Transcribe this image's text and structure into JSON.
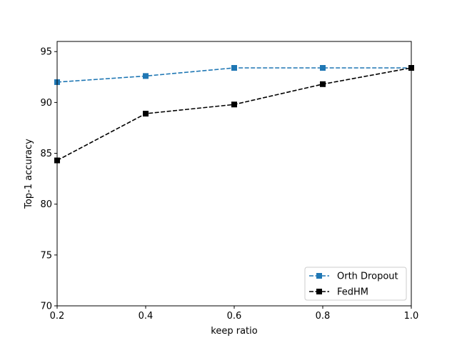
{
  "chart_data": {
    "type": "line",
    "title": "",
    "xlabel": "keep ratio",
    "ylabel": "Top-1 accuracy",
    "xlim": [
      0.2,
      1.0
    ],
    "ylim": [
      70,
      96
    ],
    "xticks": [
      0.2,
      0.4,
      0.6,
      0.8,
      1.0
    ],
    "xtick_labels": [
      "0.2",
      "0.4",
      "0.6",
      "0.8",
      "1.0"
    ],
    "yticks": [
      70,
      75,
      80,
      85,
      90,
      95
    ],
    "ytick_labels": [
      "70",
      "75",
      "80",
      "85",
      "90",
      "95"
    ],
    "grid": false,
    "legend_position": "lower-right",
    "x": [
      0.2,
      0.4,
      0.6,
      0.8,
      1.0
    ],
    "series": [
      {
        "name": "Orth Dropout",
        "color": "#1f77b4",
        "line_style": "dashed",
        "marker": "square",
        "values": [
          92.0,
          92.6,
          93.4,
          93.4,
          93.4
        ]
      },
      {
        "name": "FedHM",
        "color": "#000000",
        "line_style": "dashed",
        "marker": "square",
        "values": [
          84.3,
          88.9,
          89.8,
          91.8,
          93.4
        ]
      }
    ]
  }
}
